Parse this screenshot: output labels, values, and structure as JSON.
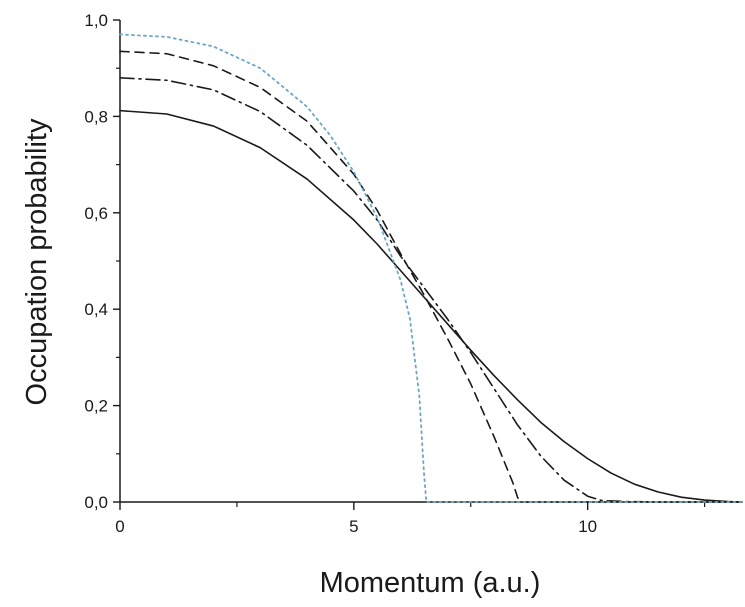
{
  "chart_data": {
    "type": "line",
    "title": "",
    "xlabel": "Momentum (a.u.)",
    "ylabel": "Occupation probability",
    "xlim": [
      0,
      13.3
    ],
    "ylim": [
      0,
      1.0
    ],
    "x_ticks": [
      0,
      5,
      10
    ],
    "x_tick_labels": [
      "0",
      "5",
      "10"
    ],
    "y_ticks": [
      0.0,
      0.2,
      0.4,
      0.6,
      0.8,
      1.0
    ],
    "y_tick_labels": [
      "0,0",
      "0,2",
      "0,4",
      "0,6",
      "0,8",
      "1,0"
    ],
    "grid": false,
    "legend": "none",
    "series": [
      {
        "style": "solid",
        "color": "#1a1a1a",
        "x": [
          0,
          1,
          2,
          3,
          4,
          5,
          5.5,
          6,
          6.5,
          7,
          7.5,
          8,
          8.5,
          9,
          9.5,
          10,
          10.5,
          11,
          11.5,
          12,
          12.5,
          13,
          13.3
        ],
        "y": [
          0.812,
          0.805,
          0.78,
          0.735,
          0.67,
          0.585,
          0.535,
          0.48,
          0.425,
          0.37,
          0.315,
          0.262,
          0.212,
          0.165,
          0.125,
          0.09,
          0.06,
          0.037,
          0.021,
          0.01,
          0.004,
          0.001,
          0.0
        ]
      },
      {
        "style": "dash-dot",
        "color": "#1a1a1a",
        "x": [
          0,
          1,
          2,
          3,
          4,
          5,
          5.5,
          6,
          6.5,
          7,
          7.5,
          8,
          8.5,
          9,
          9.5,
          10,
          10.3,
          10.8,
          11.5,
          12.5,
          13.3
        ],
        "y": [
          0.88,
          0.875,
          0.855,
          0.81,
          0.74,
          0.645,
          0.585,
          0.51,
          0.445,
          0.38,
          0.31,
          0.235,
          0.16,
          0.095,
          0.045,
          0.012,
          0.003,
          0.001,
          0.0,
          0.0,
          0.0
        ]
      },
      {
        "style": "dashed",
        "color": "#1a1a1a",
        "x": [
          0,
          1,
          2,
          3,
          4,
          5,
          5.5,
          6,
          6.5,
          7,
          7.5,
          8,
          8.4,
          8.5,
          8.55,
          9.5,
          10.5,
          11.5,
          12.5,
          13.3
        ],
        "y": [
          0.935,
          0.93,
          0.905,
          0.86,
          0.79,
          0.68,
          0.605,
          0.515,
          0.43,
          0.34,
          0.245,
          0.135,
          0.04,
          0.01,
          0.0,
          0.0,
          0.0,
          0.0,
          0.0,
          0.0
        ]
      },
      {
        "style": "dotted",
        "color": "#6aa6c8",
        "x": [
          0,
          1,
          2,
          3,
          4,
          4.5,
          5,
          5.5,
          6,
          6.2,
          6.4,
          6.5,
          6.55,
          7.5,
          8.5,
          9.5,
          10.5,
          11.5,
          12.5,
          13.3
        ],
        "y": [
          0.97,
          0.965,
          0.945,
          0.9,
          0.82,
          0.76,
          0.685,
          0.59,
          0.46,
          0.38,
          0.22,
          0.06,
          0.0,
          0.0,
          0.0,
          0.0,
          0.0,
          0.0,
          0.0,
          0.0
        ]
      }
    ]
  }
}
